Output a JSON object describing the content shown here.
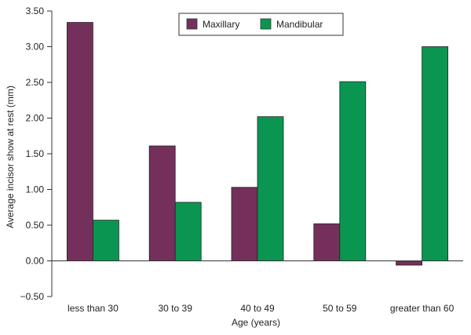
{
  "chart_data": {
    "type": "bar",
    "xlabel": "Age (years)",
    "ylabel": "Average incisor show at rest (mm)",
    "ylim": [
      -0.5,
      3.5
    ],
    "yticks": [
      "−0.50",
      "0.00",
      "0.50",
      "1.00",
      "1.50",
      "2.00",
      "2.50",
      "3.00",
      "3.50"
    ],
    "categories": [
      "less than 30",
      "30 to 39",
      "40 to 49",
      "50 to 59",
      "greater than 60"
    ],
    "series": [
      {
        "name": "Maxillary",
        "color": "#74305a",
        "values": [
          3.34,
          1.61,
          1.03,
          0.52,
          -0.06
        ]
      },
      {
        "name": "Mandibular",
        "color": "#0a9650",
        "values": [
          0.57,
          0.82,
          2.02,
          2.51,
          3.0
        ]
      }
    ],
    "legend_position": "top-center",
    "grid": false
  }
}
